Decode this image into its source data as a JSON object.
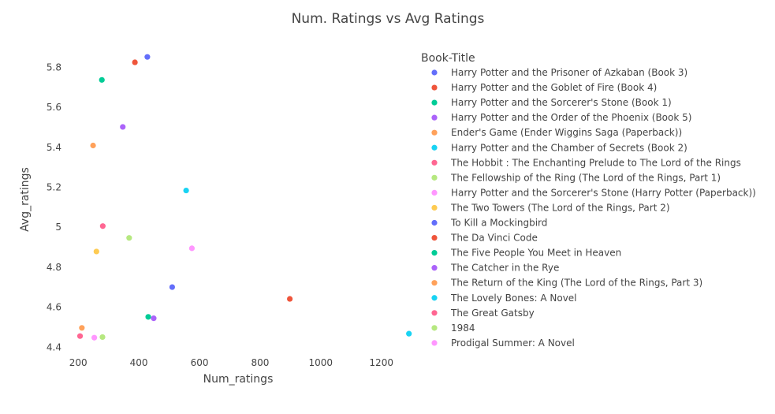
{
  "chart_data": {
    "type": "scatter",
    "title": "Num. Ratings vs Avg Ratings",
    "xlabel": "Num_ratings",
    "ylabel": "Avg_ratings",
    "xlim": [
      150,
      1310
    ],
    "ylim": [
      4.37,
      5.9
    ],
    "xticks": [
      200,
      400,
      600,
      800,
      1000,
      1200
    ],
    "yticks": [
      4.4,
      4.6,
      4.8,
      5,
      5.2,
      5.4,
      5.6,
      5.8
    ],
    "ytick_labels": [
      "4.4",
      "4.6",
      "4.8",
      "5",
      "5.2",
      "5.4",
      "5.6",
      "5.8"
    ],
    "legend_title": "Book-Title",
    "legend_position": "right",
    "grid": false,
    "series": [
      {
        "name": "Harry Potter and the Prisoner of Azkaban (Book 3)",
        "color": "#636efa",
        "x": 428,
        "y": 5.852
      },
      {
        "name": "Harry Potter and the Goblet of Fire (Book 4)",
        "color": "#EF553B",
        "x": 387,
        "y": 5.825
      },
      {
        "name": "Harry Potter and the Sorcerer's Stone (Book 1)",
        "color": "#00cc96",
        "x": 278,
        "y": 5.737
      },
      {
        "name": "Harry Potter and the Order of the Phoenix (Book 5)",
        "color": "#ab63fa",
        "x": 347,
        "y": 5.502
      },
      {
        "name": "Ender's Game (Ender Wiggins Saga (Paperback))",
        "color": "#FFA15A",
        "x": 249,
        "y": 5.409
      },
      {
        "name": "Harry Potter and the Chamber of Secrets (Book 2)",
        "color": "#19d3f3",
        "x": 556,
        "y": 5.184
      },
      {
        "name": "The Hobbit : The Enchanting Prelude to The Lord of the Rings",
        "color": "#FF6692",
        "x": 281,
        "y": 5.006
      },
      {
        "name": "The Fellowship of the Ring (The Lord of the Rings, Part 1)",
        "color": "#B6E880",
        "x": 368,
        "y": 4.947
      },
      {
        "name": "Harry Potter and the Sorcerer's Stone (Harry Potter (Paperback))",
        "color": "#FF97FF",
        "x": 575,
        "y": 4.895
      },
      {
        "name": "The Two Towers (The Lord of the Rings, Part 2)",
        "color": "#FECB52",
        "x": 260,
        "y": 4.879
      },
      {
        "name": "To Kill a Mockingbird",
        "color": "#636efa",
        "x": 510,
        "y": 4.701
      },
      {
        "name": "The Da Vinci Code",
        "color": "#EF553B",
        "x": 898,
        "y": 4.642
      },
      {
        "name": "The Five People You Meet in Heaven",
        "color": "#00cc96",
        "x": 431,
        "y": 4.552
      },
      {
        "name": "The Catcher in the Rye",
        "color": "#ab63fa",
        "x": 449,
        "y": 4.545
      },
      {
        "name": "The Return of the King (The Lord of the Rings, Part 3)",
        "color": "#FFA15A",
        "x": 212,
        "y": 4.497
      },
      {
        "name": "The Lovely Bones: A Novel",
        "color": "#19d3f3",
        "x": 1291,
        "y": 4.468
      },
      {
        "name": "The Great Gatsby",
        "color": "#FF6692",
        "x": 206,
        "y": 4.456
      },
      {
        "name": "1984",
        "color": "#B6E880",
        "x": 280,
        "y": 4.451
      },
      {
        "name": "Prodigal Summer: A Novel",
        "color": "#FF97FF",
        "x": 253,
        "y": 4.448
      }
    ]
  }
}
